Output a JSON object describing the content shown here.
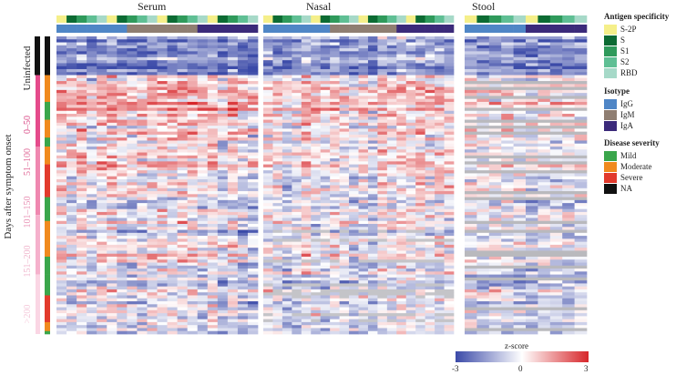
{
  "chart_data": {
    "type": "heatmap",
    "panels": [
      {
        "title": "Serum",
        "columns": 20
      },
      {
        "title": "Nasal",
        "columns": 20
      },
      {
        "title": "Stool",
        "columns": 10
      }
    ],
    "row_count": 100,
    "y_axis_label": "Days after symptom onset",
    "row_groups": [
      "Uninfected",
      "0–50",
      "51–100",
      "101–150",
      "151–200",
      ">200"
    ],
    "legends": {
      "antigen": {
        "title": "Antigen specificity",
        "items": [
          {
            "label": "S-2P",
            "color": "#f5ef8a"
          },
          {
            "label": "S",
            "color": "#0c6b33"
          },
          {
            "label": "S1",
            "color": "#2f9a5b"
          },
          {
            "label": "S2",
            "color": "#5fbf94"
          },
          {
            "label": "RBD",
            "color": "#a6d9c8"
          }
        ]
      },
      "isotype": {
        "title": "Isotype",
        "items": [
          {
            "label": "IgG",
            "color": "#4f86c6"
          },
          {
            "label": "IgM",
            "color": "#8f7e72"
          },
          {
            "label": "IgA",
            "color": "#3b2a7a"
          }
        ]
      },
      "severity": {
        "title": "Disease severity",
        "items": [
          {
            "label": "Mild",
            "color": "#3aa64b"
          },
          {
            "label": "Moderate",
            "color": "#f08a1e"
          },
          {
            "label": "Severe",
            "color": "#e23a2c"
          },
          {
            "label": "NA",
            "color": "#111111"
          }
        ]
      }
    },
    "colorbar": {
      "title": "z-score",
      "min": -3,
      "mid": 0,
      "max": 3,
      "colors": [
        "#3b4aa8",
        "#ffffff",
        "#d7262a"
      ]
    }
  }
}
